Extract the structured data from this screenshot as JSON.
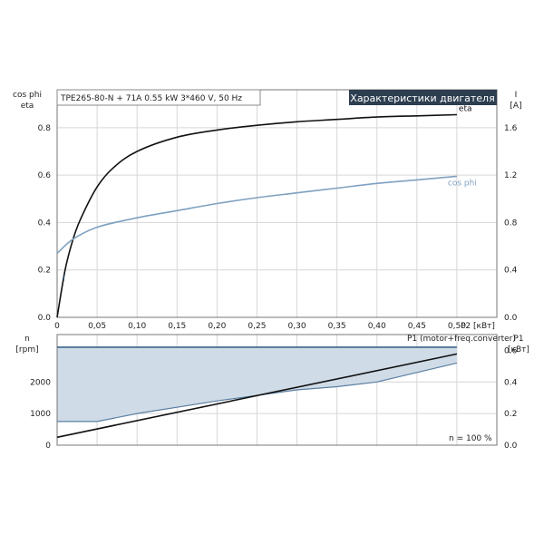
{
  "chart_data": [
    {
      "type": "line",
      "info_label": "TPE265-80-N + 71A   0.55 kW   3*460 V, 50 Hz",
      "title": "Характеристики двигателя",
      "xlabel": "P2 [кВт]",
      "ylabel_left": [
        "cos phi",
        "eta"
      ],
      "ylabel_right": [
        "I",
        "[A]"
      ],
      "xlim": [
        0,
        0.55
      ],
      "ylim_left": [
        0,
        0.96
      ],
      "ylim_right": [
        0,
        1.92
      ],
      "x_ticks": [
        "0",
        "0,05",
        "0,10",
        "0,15",
        "0,20",
        "0,25",
        "0,30",
        "0,35",
        "0,40",
        "0,45",
        "0,50"
      ],
      "x_tick_values": [
        0,
        0.05,
        0.1,
        0.15,
        0.2,
        0.25,
        0.3,
        0.35,
        0.4,
        0.45,
        0.5
      ],
      "y_left_ticks": [
        "0.0",
        "0.2",
        "0.4",
        "0.6",
        "0.8"
      ],
      "y_left_tick_values": [
        0,
        0.2,
        0.4,
        0.6,
        0.8
      ],
      "y_right_ticks": [
        "0.0",
        "0.4",
        "0.8",
        "1.2",
        "1.6"
      ],
      "y_right_tick_values": [
        0,
        0.4,
        0.8,
        1.2,
        1.6
      ],
      "grid": true,
      "series": [
        {
          "name": "eta",
          "axis": "left",
          "color": "#111111",
          "x": [
            0,
            0.01,
            0.02,
            0.03,
            0.05,
            0.07,
            0.1,
            0.15,
            0.2,
            0.25,
            0.3,
            0.35,
            0.4,
            0.45,
            0.5,
            0.55
          ],
          "y": [
            0,
            0.2,
            0.33,
            0.42,
            0.55,
            0.63,
            0.7,
            0.76,
            0.79,
            0.81,
            0.825,
            0.835,
            0.845,
            0.85,
            0.855,
            0.86
          ]
        },
        {
          "name": "I",
          "axis": "right",
          "color": "#1e4d7b",
          "x": [
            0,
            0.55
          ],
          "y": [
            0.23,
            1.31
          ]
        },
        {
          "name": "cos phi",
          "axis": "left",
          "color": "#7ea1c0",
          "x": [
            0,
            0.02,
            0.05,
            0.1,
            0.15,
            0.2,
            0.25,
            0.3,
            0.35,
            0.4,
            0.45,
            0.5,
            0.55
          ],
          "y": [
            0.27,
            0.33,
            0.38,
            0.42,
            0.45,
            0.48,
            0.505,
            0.525,
            0.545,
            0.565,
            0.58,
            0.595,
            0.61
          ]
        }
      ]
    },
    {
      "type": "area",
      "ylabel_left": [
        "n",
        "[rpm]"
      ],
      "ylabel_right": [
        "P1",
        "[кВт]"
      ],
      "series_label": "P1 (motor+freq.converter)",
      "annotation": "n = 100 %",
      "xlim": [
        0,
        0.55
      ],
      "ylim_left": [
        0,
        3500
      ],
      "ylim_right": [
        0,
        0.7
      ],
      "y_left_ticks": [
        "0",
        "1000",
        "2000"
      ],
      "y_left_tick_values": [
        0,
        1000,
        2000
      ],
      "y_right_ticks": [
        "0.0",
        "0.2",
        "0.4",
        "0.6"
      ],
      "y_right_tick_values": [
        0,
        0.2,
        0.4,
        0.6
      ],
      "grid": true,
      "series": [
        {
          "name": "n max",
          "axis": "left",
          "color": "#1e4d7b",
          "x": [
            0,
            0.55
          ],
          "y": [
            3100,
            3100
          ]
        },
        {
          "name": "n min",
          "axis": "left",
          "color": "#5b7fa3",
          "x": [
            0,
            0.05,
            0.1,
            0.2,
            0.3,
            0.35,
            0.4,
            0.45,
            0.5,
            0.55
          ],
          "y": [
            750,
            750,
            1000,
            1400,
            1750,
            1850,
            2000,
            2300,
            2600,
            2850
          ]
        },
        {
          "name": "P1",
          "axis": "right",
          "color": "#111111",
          "x": [
            0,
            0.55
          ],
          "y": [
            0.05,
            0.63
          ]
        }
      ]
    }
  ]
}
